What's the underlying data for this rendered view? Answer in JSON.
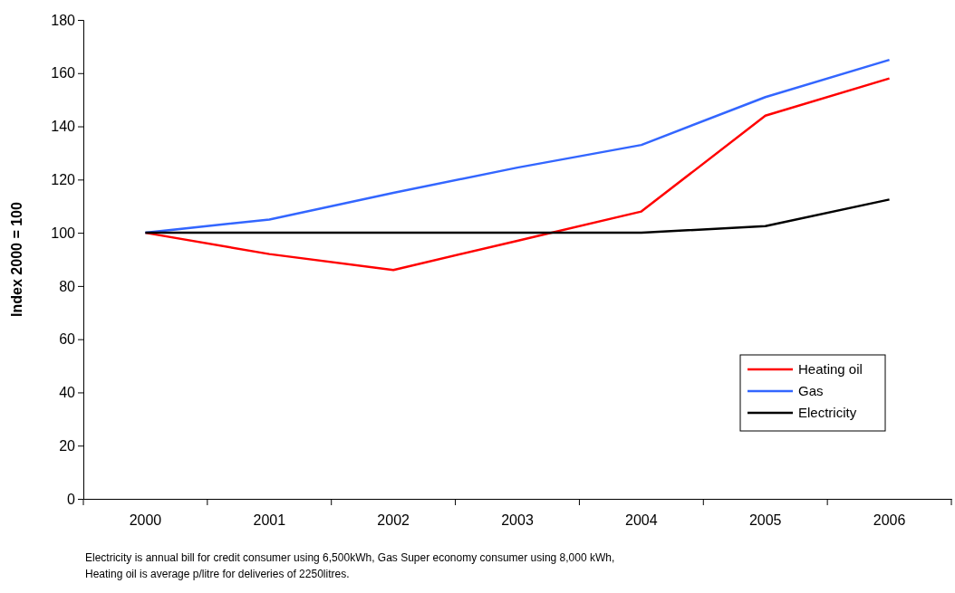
{
  "chart_data": {
    "type": "line",
    "ylabel": "Index 2000 = 100",
    "categories": [
      "2000",
      "2001",
      "2002",
      "2003",
      "2004",
      "2005",
      "2006"
    ],
    "series": [
      {
        "name": "Heating oil",
        "color": "#ff0000",
        "values": [
          100,
          92,
          86,
          97,
          108,
          144,
          158
        ]
      },
      {
        "name": "Gas",
        "color": "#3366ff",
        "values": [
          100,
          105,
          115,
          124.5,
          133,
          151,
          165
        ]
      },
      {
        "name": "Electricity",
        "color": "#000000",
        "values": [
          100,
          100,
          100,
          100,
          100,
          102.5,
          112.5
        ]
      }
    ],
    "ylim": [
      0,
      180
    ],
    "yticks": [
      0,
      20,
      40,
      60,
      80,
      100,
      120,
      140,
      160,
      180
    ],
    "grid": false,
    "legend": "bottom right",
    "marker": "none",
    "line_style": "solid",
    "annotations": [
      "Electricity is annual bill for credit consumer using 6,500kWh, Gas Super economy consumer using 8,000 kWh,",
      "Heating oil is average p/litre for deliveries of 2250litres."
    ]
  }
}
